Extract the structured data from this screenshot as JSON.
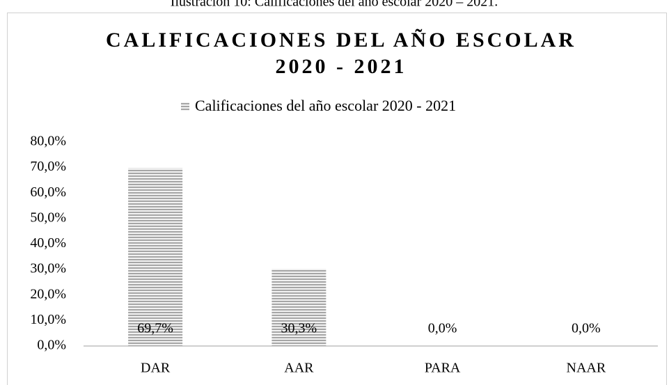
{
  "caption": "Ilustración 10: Calificaciones del año escolar 2020 – 2021.",
  "chart_data": {
    "type": "bar",
    "title_lines": [
      "CALIFICACIONES DEL AÑO ESCOLAR",
      "2020 - 2021"
    ],
    "categories": [
      "DAR",
      "AAR",
      "PARA",
      "NAAR"
    ],
    "series": [
      {
        "name": "Calificaciones del año escolar 2020 - 2021",
        "color": "#a6a6a6",
        "values": [
          69.7,
          30.3,
          0,
          0
        ],
        "value_labels": [
          "69,7%",
          "30,3%",
          "0,0%",
          "0,0%"
        ]
      }
    ],
    "ylim": [
      0,
      80
    ],
    "yticks": [
      {
        "value": 0,
        "label": "0,0%"
      },
      {
        "value": 10,
        "label": "10,0%"
      },
      {
        "value": 20,
        "label": "20,0%"
      },
      {
        "value": 30,
        "label": "30,0%"
      },
      {
        "value": 40,
        "label": "40,0%"
      },
      {
        "value": 50,
        "label": "50,0%"
      },
      {
        "value": 60,
        "label": "60,0%"
      },
      {
        "value": 70,
        "label": "70,0%"
      },
      {
        "value": 80,
        "label": "80,0%"
      }
    ],
    "grid": false,
    "legend": "top"
  }
}
